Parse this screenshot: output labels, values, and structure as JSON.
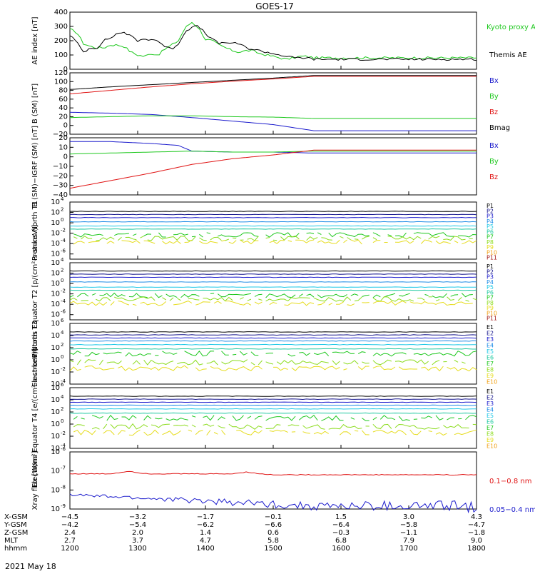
{
  "title": "GOES-17",
  "date_label": "2021 May 18",
  "colors": {
    "black": "#000000",
    "blue": "#1a1acc",
    "green": "#1ec81e",
    "red": "#e01414",
    "navy": "#14148c",
    "sky": "#1e8ce6",
    "cyan": "#1ec8e6",
    "teal": "#1ec8a0",
    "lime": "#8cdc1e",
    "yellow": "#e6dc1e",
    "orange": "#f0a014",
    "darkred": "#a01414"
  },
  "chart_data": [
    {
      "type": "line",
      "id": "ae",
      "ylabel": "AE index [nT]",
      "ylim": [
        0,
        400
      ],
      "ytick_labels": [
        "0",
        "100",
        "200",
        "300",
        "400"
      ],
      "ytick_values": [
        0,
        100,
        200,
        300,
        400
      ],
      "series": [
        {
          "name": "Kyoto proxy AE",
          "color": "#1ec81e",
          "x": [
            1200,
            1210,
            1220,
            1230,
            1240,
            1250,
            1300,
            1310,
            1320,
            1330,
            1340,
            1350,
            1400,
            1410,
            1420,
            1430,
            1440,
            1450,
            1500,
            1510,
            1520,
            1530,
            1540,
            1550,
            1600,
            1610,
            1620,
            1630,
            1640,
            1650,
            1700,
            1710,
            1720,
            1730,
            1740,
            1750,
            1800
          ],
          "y": [
            280,
            260,
            180,
            160,
            150,
            150,
            170,
            170,
            160,
            120,
            100,
            90,
            110,
            100,
            140,
            170,
            200,
            290,
            330,
            290,
            210,
            200,
            170,
            150,
            130,
            120,
            130,
            130,
            110,
            100,
            90,
            80,
            70,
            80,
            90,
            90,
            80
          ]
        },
        {
          "name": "Themis AE",
          "color": "#000000",
          "x": [
            1200,
            1210,
            1220,
            1230,
            1240,
            1250,
            1300,
            1310,
            1320,
            1330,
            1340,
            1350,
            1400,
            1410,
            1420,
            1430,
            1440,
            1450,
            1500,
            1510,
            1520,
            1530,
            1540,
            1550,
            1600,
            1610,
            1620,
            1630,
            1640,
            1650,
            1700,
            1710,
            1720,
            1730,
            1740,
            1750,
            1800
          ],
          "y": [
            240,
            190,
            120,
            150,
            150,
            200,
            220,
            250,
            260,
            230,
            200,
            210,
            210,
            200,
            160,
            140,
            180,
            260,
            300,
            300,
            250,
            210,
            180,
            190,
            180,
            180,
            150,
            140,
            130,
            120,
            110,
            100,
            90,
            80,
            80,
            80,
            70
          ]
        }
      ]
    },
    {
      "type": "line",
      "id": "bsm",
      "ylabel": "B (SM) [nT]",
      "ylim": [
        -20,
        120
      ],
      "ytick_labels": [
        "−20",
        "0",
        "20",
        "40",
        "60",
        "80",
        "100",
        "120"
      ],
      "ytick_values": [
        -20,
        0,
        20,
        40,
        60,
        80,
        100,
        120
      ],
      "series": [
        {
          "name": "Bx",
          "color": "#1a1acc",
          "x": [
            1200,
            1300,
            1400,
            1500,
            1600,
            1700,
            1800
          ],
          "y": [
            30,
            28,
            25,
            18,
            10,
            2,
            -12
          ]
        },
        {
          "name": "By",
          "color": "#1ec81e",
          "x": [
            1200,
            1300,
            1400,
            1500,
            1600,
            1700,
            1800
          ],
          "y": [
            18,
            20,
            22,
            22,
            20,
            19,
            16
          ]
        },
        {
          "name": "Bz",
          "color": "#e01414",
          "x": [
            1200,
            1300,
            1400,
            1500,
            1600,
            1700,
            1800
          ],
          "y": [
            72,
            80,
            88,
            95,
            101,
            106,
            112
          ]
        },
        {
          "name": "Bmag",
          "color": "#000000",
          "x": [
            1200,
            1300,
            1400,
            1500,
            1600,
            1700,
            1800
          ],
          "y": [
            82,
            88,
            93,
            98,
            103,
            108,
            114
          ]
        }
      ]
    },
    {
      "type": "line",
      "id": "bigrf",
      "ylabel": "B (SM)−IGRF (SM) [nT]",
      "ylim": [
        -40,
        20
      ],
      "ytick_labels": [
        "−40",
        "−30",
        "−20",
        "−10",
        "0",
        "10",
        "20"
      ],
      "ytick_values": [
        -40,
        -30,
        -20,
        -10,
        0,
        10,
        20
      ],
      "series": [
        {
          "name": "Bx",
          "color": "#1a1acc",
          "x": [
            1200,
            1300,
            1400,
            1440,
            1500,
            1600,
            1700,
            1800
          ],
          "y": [
            16,
            16,
            14,
            12,
            6,
            5,
            5,
            4
          ]
        },
        {
          "name": "By",
          "color": "#1ec81e",
          "x": [
            1200,
            1300,
            1400,
            1500,
            1600,
            1700,
            1800
          ],
          "y": [
            3,
            4,
            5,
            6,
            5,
            5,
            6
          ]
        },
        {
          "name": "Bz",
          "color": "#e01414",
          "x": [
            1200,
            1300,
            1400,
            1500,
            1600,
            1700,
            1800
          ],
          "y": [
            -33,
            -25,
            -17,
            -8,
            -2,
            2,
            7
          ]
        }
      ]
    },
    {
      "type": "line",
      "id": "prot1",
      "ylabel": "Protons North T1",
      "log_scale": true,
      "ylim_exp": [
        -7,
        4
      ],
      "ytick_exps": [
        -6,
        -4,
        -2,
        0,
        2,
        4
      ],
      "series_names": [
        "P1",
        "P2",
        "P3",
        "P4",
        "P5",
        "P6",
        "P7",
        "P8",
        "P9",
        "P10",
        "P11"
      ],
      "levels_exp": [
        2.2,
        1.6,
        1.0,
        0.2,
        -0.6,
        -1.2,
        -2.3,
        -3.0,
        -3.7,
        null,
        null
      ]
    },
    {
      "type": "line",
      "id": "prot2",
      "ylabel": "Protons Equator T2 [p/(cm²-s-sr-keV)]",
      "log_scale": true,
      "ylim_exp": [
        -7,
        4
      ],
      "ytick_exps": [
        -6,
        -4,
        -2,
        0,
        2,
        4
      ],
      "series_names": [
        "P1",
        "P2",
        "P3",
        "P4",
        "P5",
        "P6",
        "P7",
        "P8",
        "P9",
        "P10",
        "P11"
      ],
      "levels_exp": [
        2.4,
        1.8,
        1.2,
        0.3,
        -0.7,
        -1.3,
        -2.3,
        -3.0,
        -3.8,
        null,
        null
      ]
    },
    {
      "type": "line",
      "id": "elec1",
      "ylabel": "Electrons North T3",
      "log_scale": true,
      "ylim_exp": [
        -4,
        6
      ],
      "ytick_exps": [
        -4,
        -2,
        0,
        2,
        4,
        6
      ],
      "series_names": [
        "E1",
        "E2",
        "E3",
        "E4",
        "E5",
        "E6",
        "E7",
        "E8",
        "E9",
        "E10"
      ],
      "levels_exp": [
        4.6,
        4.1,
        3.6,
        3.1,
        2.5,
        1.8,
        1.0,
        -0.4,
        -1.4,
        null
      ]
    },
    {
      "type": "line",
      "id": "elec2",
      "ylabel": "Electrons Equator T4 [e/(cm²-s-sr-keV)]",
      "log_scale": true,
      "ylim_exp": [
        -4,
        6
      ],
      "ytick_exps": [
        -4,
        -2,
        0,
        2,
        4,
        6
      ],
      "series_names": [
        "E1",
        "E2",
        "E3",
        "E4",
        "E5",
        "E6",
        "E7",
        "E8",
        "E9",
        "E10"
      ],
      "levels_exp": [
        4.6,
        4.1,
        3.6,
        3.1,
        2.5,
        1.8,
        1.0,
        -0.4,
        -1.4,
        null
      ]
    },
    {
      "type": "line",
      "id": "xray",
      "ylabel": "Xray flux [W/m²]",
      "log_scale": true,
      "ylim_exp": [
        -9,
        -6
      ],
      "ytick_exps": [
        -9,
        -8,
        -7,
        -6
      ],
      "series": [
        {
          "name": "0.1−0.8 nm",
          "color": "#e01414",
          "x": [
            1200,
            1300,
            1330,
            1340,
            1400,
            1500,
            1600,
            1620,
            1640,
            1700,
            1800
          ],
          "y_exp": [
            -7.15,
            -7.15,
            -7.0,
            -7.1,
            -7.15,
            -7.15,
            -7.15,
            -7.05,
            -7.15,
            -7.2,
            -7.2
          ]
        },
        {
          "name": "0.05−0.4 nm",
          "color": "#1a1acc",
          "x": [
            1200,
            1300,
            1400,
            1500,
            1600,
            1700,
            1800
          ],
          "y_exp": [
            -8.25,
            -8.35,
            -8.45,
            -8.55,
            -8.65,
            -8.75,
            -8.85
          ]
        }
      ]
    }
  ],
  "x_axis": {
    "ticks": [
      1200,
      1300,
      1400,
      1500,
      1600,
      1700,
      1800
    ],
    "rows": [
      {
        "label": "X-GSM",
        "values": [
          "−4.5",
          "−3.2",
          "−1.7",
          "−0.1",
          "1.5",
          "3.0",
          "4.3"
        ]
      },
      {
        "label": "Y-GSM",
        "values": [
          "−4.2",
          "−5.4",
          "−6.2",
          "−6.6",
          "−6.4",
          "−5.8",
          "−4.7"
        ]
      },
      {
        "label": "Z-GSM",
        "values": [
          "2.4",
          "2.0",
          "1.4",
          "0.6",
          "−0.3",
          "−1.1",
          "−1.8"
        ]
      },
      {
        "label": "MLT",
        "values": [
          "2.7",
          "3.7",
          "4.7",
          "5.8",
          "6.8",
          "7.9",
          "9.0"
        ]
      },
      {
        "label": "hhmm",
        "values": [
          "1200",
          "1300",
          "1400",
          "1500",
          "1600",
          "1700",
          "1800"
        ]
      }
    ]
  }
}
